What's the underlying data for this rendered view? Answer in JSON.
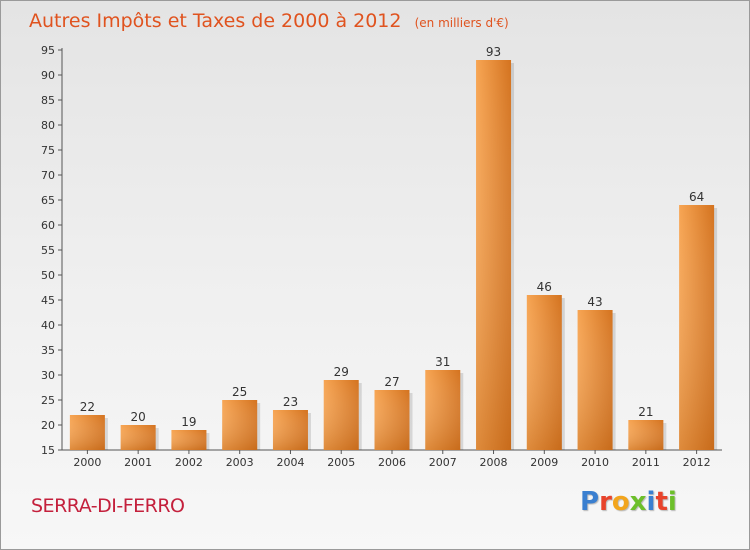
{
  "title": "Autres Impôts et Taxes de 2000 à 2012",
  "unit": "(en milliers d'€)",
  "commune": "SERRA-DI-FERRO",
  "logo": {
    "letters": [
      "P",
      "r",
      "o",
      "x",
      "i",
      "t",
      "i"
    ],
    "colors": [
      "#3a7fd0",
      "#e8432b",
      "#f2a51d",
      "#6cbf2a",
      "#3a7fd0",
      "#e8432b",
      "#6cbf2a"
    ]
  },
  "colors": {
    "bar_light": "#f7a553",
    "bar_dark": "#d4731f",
    "title": "#e0531f",
    "commune": "#c4203c"
  },
  "chart_data": {
    "type": "bar",
    "categories": [
      "2000",
      "2001",
      "2002",
      "2003",
      "2004",
      "2005",
      "2006",
      "2007",
      "2008",
      "2009",
      "2010",
      "2011",
      "2012"
    ],
    "values": [
      22,
      20,
      19,
      25,
      23,
      29,
      27,
      31,
      93,
      46,
      43,
      21,
      64
    ],
    "yticks": [
      15,
      20,
      25,
      30,
      35,
      40,
      45,
      50,
      55,
      60,
      65,
      70,
      75,
      80,
      85,
      90,
      95
    ],
    "ylim": [
      15,
      95
    ],
    "grid": false,
    "legend": "none"
  }
}
